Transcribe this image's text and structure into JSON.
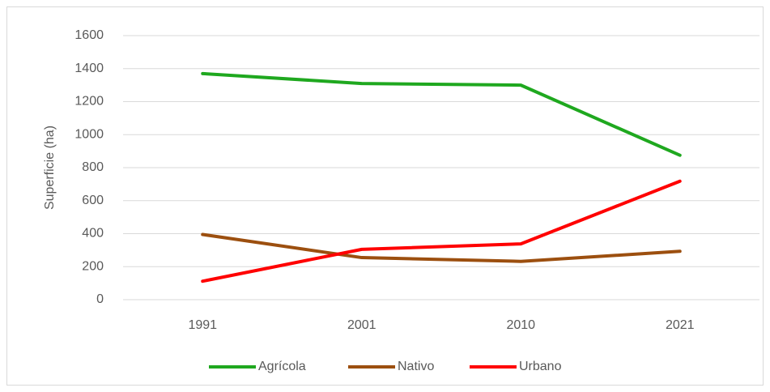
{
  "chart_data": {
    "type": "line",
    "y_label": "Superficie (ha)",
    "categories": [
      "1991",
      "2001",
      "2010",
      "2021"
    ],
    "series": [
      {
        "name": "Agrícola",
        "color": "#1fa81f",
        "values": [
          1370,
          1310,
          1300,
          875
        ]
      },
      {
        "name": "Nativo",
        "color": "#9c4f0f",
        "values": [
          395,
          255,
          232,
          293
        ]
      },
      {
        "name": "Urbano",
        "color": "#ff0000",
        "values": [
          112,
          305,
          338,
          718
        ]
      }
    ],
    "ylim": [
      0,
      1600
    ],
    "yticks": [
      0,
      200,
      400,
      600,
      800,
      1000,
      1200,
      1400,
      1600
    ],
    "grid": true,
    "legend": "bottom"
  }
}
